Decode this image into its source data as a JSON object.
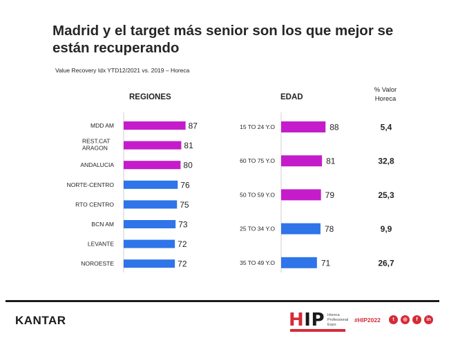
{
  "title": "Madrid y el target más senior son los que mejor se están recuperando",
  "subtitle": "Value Recovery Idx YTD12/2021 vs. 2019 – Horeca",
  "column_header": [
    "% Valor",
    "Horeca"
  ],
  "footer": {
    "brand": "KANTAR",
    "event_logo": "HIP",
    "event_logo_text": [
      "Horeca",
      "Professional",
      "Expo"
    ],
    "hashtag": "#HIP2022",
    "social_icons": [
      "twitter-icon",
      "instagram-icon",
      "facebook-icon",
      "linkedin-icon"
    ]
  },
  "colors": {
    "magenta": "#c51ccb",
    "blue": "#2f74e8",
    "accent": "#d52b37"
  },
  "chart_data": [
    {
      "type": "bar",
      "orientation": "horizontal",
      "title": "REGIONES",
      "categories": [
        "MDD AM",
        "REST.CAT ARAGON",
        "ANDALUCIA",
        "NORTE-CENTRO",
        "RTO CENTRO",
        "BCN AM",
        "LEVANTE",
        "NOROESTE"
      ],
      "values": [
        87,
        81,
        80,
        76,
        75,
        73,
        72,
        72
      ],
      "bar_colors": [
        "#c51ccb",
        "#c51ccb",
        "#c51ccb",
        "#2f74e8",
        "#2f74e8",
        "#2f74e8",
        "#2f74e8",
        "#2f74e8"
      ],
      "data_labels": true
    },
    {
      "type": "bar",
      "orientation": "horizontal",
      "title": "EDAD",
      "categories": [
        "15 TO 24 Y.O",
        "60 TO 75 Y.O",
        "50 TO 59 Y.O",
        "25 TO 34 Y.O",
        "35 TO 49 Y.O"
      ],
      "values": [
        88,
        81,
        79,
        78,
        71
      ],
      "bar_colors": [
        "#c51ccb",
        "#c51ccb",
        "#c51ccb",
        "#2f74e8",
        "#2f74e8"
      ],
      "pct_valor_horeca": [
        "5,4",
        "32,8",
        "25,3",
        "9,9",
        "26,7"
      ],
      "data_labels": true
    }
  ]
}
